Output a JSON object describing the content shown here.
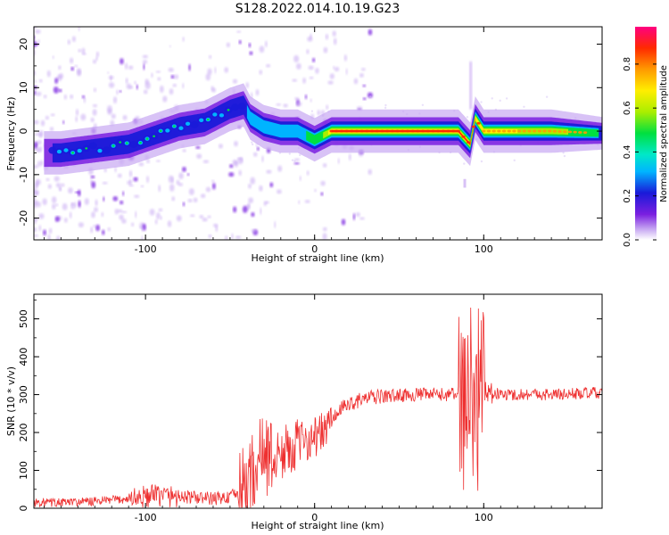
{
  "figure": {
    "title": "S128.2022.014.10.19.G23"
  },
  "chart_data": [
    {
      "type": "heatmap",
      "title": "S128.2022.014.10.19.G23",
      "xlabel": "Height of straight line (km)",
      "ylabel": "Frequency (Hz)",
      "xlim": [
        -166,
        170
      ],
      "ylim": [
        -25,
        24
      ],
      "xticks": [
        -100,
        0,
        100
      ],
      "yticks": [
        -20,
        -10,
        0,
        10,
        20
      ],
      "colorbar": {
        "label": "Normalized spectral amplitude",
        "range": [
          0.0,
          0.97
        ],
        "ticks": [
          0.0,
          0.2,
          0.4,
          0.6,
          0.8
        ],
        "colormap": [
          "#ffffff",
          "#c7a8f2",
          "#7a1fe0",
          "#1a1ad9",
          "#00b4ff",
          "#00e8c8",
          "#00e040",
          "#aaee00",
          "#ffee00",
          "#ff9a00",
          "#ff2a00",
          "#ff0080"
        ]
      },
      "ridge": {
        "description_points_x": [
          -150,
          -130,
          -110,
          -95,
          -80,
          -65,
          -50,
          -42,
          -38,
          -30,
          -20,
          -10,
          -5,
          0,
          10,
          40,
          80,
          85,
          92,
          95,
          100,
          140,
          170
        ],
        "description_points_y": [
          -5,
          -4,
          -3,
          -1,
          1,
          2,
          5,
          6,
          3,
          1,
          0,
          0,
          -1,
          -2,
          0,
          0,
          0,
          0,
          -3,
          3,
          0,
          0,
          -0.5
        ]
      },
      "grid": false,
      "legend": "none"
    },
    {
      "type": "line",
      "xlabel": "Height of straight line (km)",
      "ylabel": "SNR (10 * v/v)",
      "xlim": [
        -166,
        170
      ],
      "ylim": [
        0,
        565
      ],
      "xticks": [
        -100,
        0,
        100
      ],
      "yticks": [
        0,
        100,
        200,
        300,
        400,
        500
      ],
      "color": "#ee3030",
      "series": [
        {
          "x": [
            -166,
            -150,
            -130,
            -110,
            -100,
            -90,
            -80,
            -70,
            -60,
            -50,
            -45,
            -40,
            -35,
            -30,
            -25,
            -20,
            -15,
            -10,
            -5,
            0,
            5,
            10,
            15,
            20,
            30,
            40,
            50,
            60,
            70,
            80,
            85,
            88,
            90,
            92,
            94,
            96,
            98,
            100,
            102,
            105,
            110,
            120,
            130,
            140,
            150,
            160,
            170
          ],
          "y": [
            15,
            15,
            18,
            25,
            30,
            35,
            30,
            28,
            25,
            30,
            40,
            60,
            110,
            150,
            130,
            140,
            160,
            170,
            180,
            190,
            200,
            230,
            260,
            275,
            290,
            295,
            298,
            300,
            300,
            300,
            305,
            310,
            330,
            280,
            320,
            260,
            300,
            320,
            300,
            305,
            300,
            300,
            302,
            300,
            302,
            303,
            305
          ]
        }
      ],
      "grid": false,
      "legend": "none"
    }
  ]
}
